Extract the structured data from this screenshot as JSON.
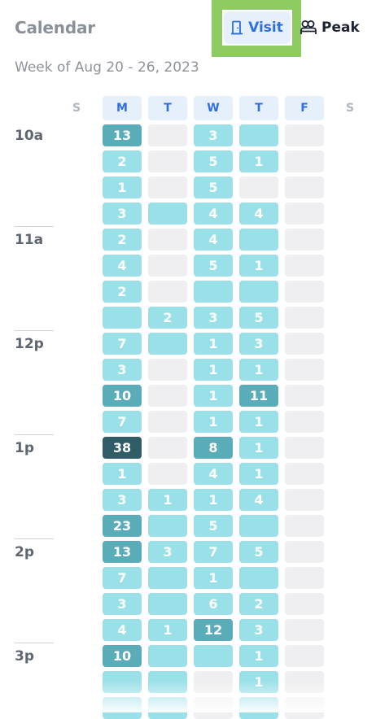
{
  "header": {
    "title": "Calendar",
    "visit_label": "Visit",
    "peak_label": "Peak",
    "visit_icon": "door-icon",
    "peak_icon": "people-icon",
    "highlight_color": "#8ecb62",
    "accent_color": "#2f6fe0"
  },
  "week_label": "Week of Aug 20 - 26, 2023",
  "days": [
    "S",
    "M",
    "T",
    "W",
    "T",
    "F",
    "S"
  ],
  "times": [
    "10a",
    "11a",
    "12p",
    "1p",
    "2p",
    "3p"
  ],
  "colors": {
    "empty": "#efeff1",
    "light": "#a7e5ec",
    "medium": "#5aacb8",
    "dark": "#2f5c66"
  },
  "grid": [
    [
      "13",
      "",
      "3",
      "",
      ""
    ],
    [
      "2",
      "",
      "5",
      "1",
      ""
    ],
    [
      "1",
      "",
      "5",
      "",
      ""
    ],
    [
      "3",
      "",
      "4",
      "4",
      ""
    ],
    [
      "2",
      "",
      "4",
      "",
      ""
    ],
    [
      "4",
      "",
      "5",
      "1",
      ""
    ],
    [
      "2",
      "",
      "",
      "",
      ""
    ],
    [
      "",
      "2",
      "3",
      "5",
      ""
    ],
    [
      "7",
      "",
      "1",
      "3",
      ""
    ],
    [
      "3",
      "",
      "1",
      "1",
      ""
    ],
    [
      "10",
      "",
      "1",
      "11",
      ""
    ],
    [
      "7",
      "",
      "1",
      "1",
      ""
    ],
    [
      "38",
      "",
      "8",
      "1",
      ""
    ],
    [
      "1",
      "",
      "4",
      "1",
      ""
    ],
    [
      "3",
      "1",
      "1",
      "4",
      ""
    ],
    [
      "23",
      "",
      "5",
      "",
      ""
    ],
    [
      "13",
      "3",
      "7",
      "5",
      ""
    ],
    [
      "7",
      "",
      "1",
      "",
      ""
    ],
    [
      "3",
      "",
      "6",
      "2",
      ""
    ],
    [
      "4",
      "1",
      "12",
      "3",
      ""
    ],
    [
      "10",
      "",
      "",
      "1",
      ""
    ],
    [
      "",
      "",
      "",
      "1",
      ""
    ],
    [
      "",
      "",
      "",
      "",
      ""
    ]
  ],
  "levels": [
    [
      "medium",
      "empty",
      "light",
      "light",
      "empty"
    ],
    [
      "light",
      "empty",
      "light",
      "light",
      "empty"
    ],
    [
      "light",
      "empty",
      "light",
      "empty",
      "empty"
    ],
    [
      "light",
      "light",
      "light",
      "light",
      "empty"
    ],
    [
      "light",
      "empty",
      "light",
      "light",
      "empty"
    ],
    [
      "light",
      "empty",
      "light",
      "light",
      "empty"
    ],
    [
      "light",
      "empty",
      "light",
      "light",
      "empty"
    ],
    [
      "light",
      "light",
      "light",
      "light",
      "empty"
    ],
    [
      "light",
      "light",
      "light",
      "light",
      "empty"
    ],
    [
      "light",
      "empty",
      "light",
      "light",
      "empty"
    ],
    [
      "medium",
      "empty",
      "light",
      "medium",
      "empty"
    ],
    [
      "light",
      "empty",
      "light",
      "light",
      "empty"
    ],
    [
      "dark",
      "empty",
      "medium",
      "light",
      "empty"
    ],
    [
      "light",
      "empty",
      "light",
      "light",
      "empty"
    ],
    [
      "light",
      "light",
      "light",
      "light",
      "empty"
    ],
    [
      "medium",
      "light",
      "light",
      "light",
      "empty"
    ],
    [
      "medium",
      "light",
      "light",
      "light",
      "empty"
    ],
    [
      "light",
      "light",
      "light",
      "light",
      "empty"
    ],
    [
      "light",
      "light",
      "light",
      "light",
      "empty"
    ],
    [
      "light",
      "light",
      "medium",
      "light",
      "empty"
    ],
    [
      "medium",
      "light",
      "light",
      "light",
      "empty"
    ],
    [
      "light",
      "light",
      "empty",
      "light",
      "empty"
    ],
    [
      "light",
      "light",
      "empty",
      "light",
      "empty"
    ]
  ]
}
